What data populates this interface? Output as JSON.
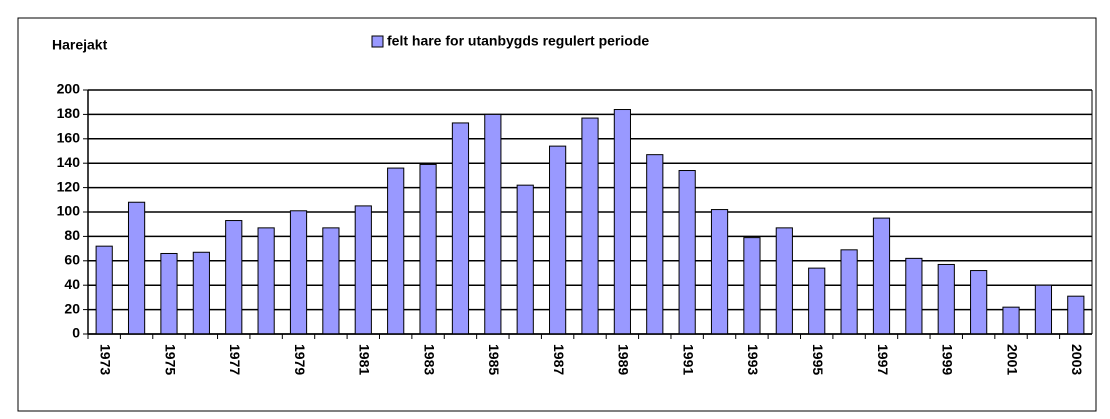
{
  "chart_data": {
    "type": "bar",
    "title": "Harejakt",
    "categories": [
      "1973",
      null,
      "1975",
      null,
      "1977",
      null,
      "1979",
      null,
      "1981",
      null,
      "1983",
      null,
      "1985",
      null,
      "1987",
      null,
      "1989",
      null,
      "1991",
      null,
      "1993",
      null,
      "1995",
      null,
      "1997",
      null,
      "1999",
      null,
      "2001",
      null,
      "2003"
    ],
    "series": [
      {
        "name": "felt hare for utanbygds regulert periode",
        "color": "#9999ff",
        "values": [
          72,
          108,
          66,
          67,
          93,
          87,
          101,
          87,
          105,
          136,
          139,
          173,
          180,
          122,
          154,
          177,
          184,
          147,
          134,
          102,
          79,
          87,
          54,
          69,
          95,
          62,
          57,
          52,
          22,
          40,
          31
        ]
      }
    ],
    "ylim": [
      0,
      200
    ],
    "yticks": [
      0,
      20,
      40,
      60,
      80,
      100,
      120,
      140,
      160,
      180,
      200
    ],
    "grid": true,
    "legend": "top"
  }
}
